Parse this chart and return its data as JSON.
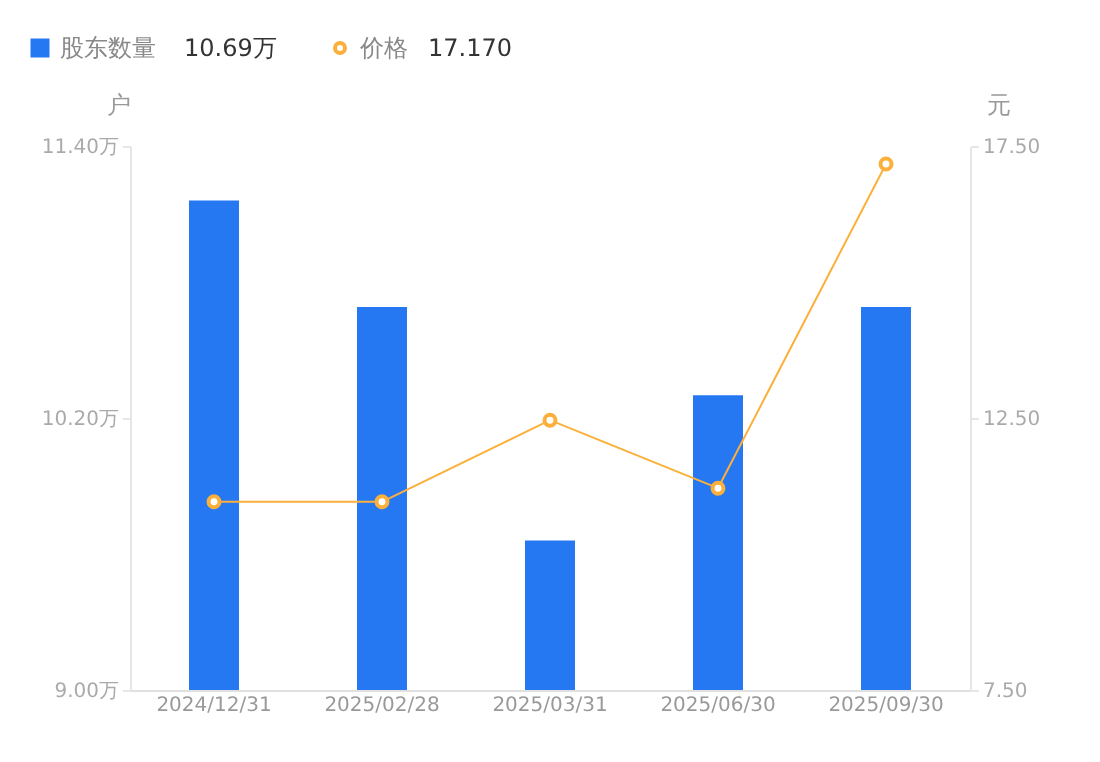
{
  "chart_data": {
    "type": "bar",
    "ylabel": "户",
    "y2label": "元",
    "categories": [
      "2024/12/31",
      "2025/02/28",
      "2025/03/31",
      "2025/06/30",
      "2025/09/30"
    ],
    "series": [
      {
        "name": "股东数量",
        "color": "#2577f2",
        "values": [
          11.16,
          10.69,
          9.66,
          10.3,
          10.69
        ]
      },
      {
        "name": "价格",
        "type": "line",
        "axis": "y2",
        "color": "#fbb03b",
        "marker": "circle",
        "values": [
          10.96,
          10.96,
          12.46,
          11.21,
          17.17
        ]
      }
    ],
    "annotations": [
      "10.69万",
      "17.170"
    ],
    "ylim": [
      9.0,
      11.4
    ],
    "yticks": [
      {
        "value": 9.0,
        "label": "9.00万"
      },
      {
        "value": 10.2,
        "label": "10.20万"
      },
      {
        "value": 11.4,
        "label": "11.40万"
      }
    ],
    "y2lim": [
      7.5,
      17.5
    ],
    "y2ticks": [
      {
        "value": 7.5,
        "label": "7.50"
      },
      {
        "value": 12.5,
        "label": "12.50"
      },
      {
        "value": 17.5,
        "label": "17.50"
      }
    ],
    "grid": false,
    "legend": "top left"
  }
}
